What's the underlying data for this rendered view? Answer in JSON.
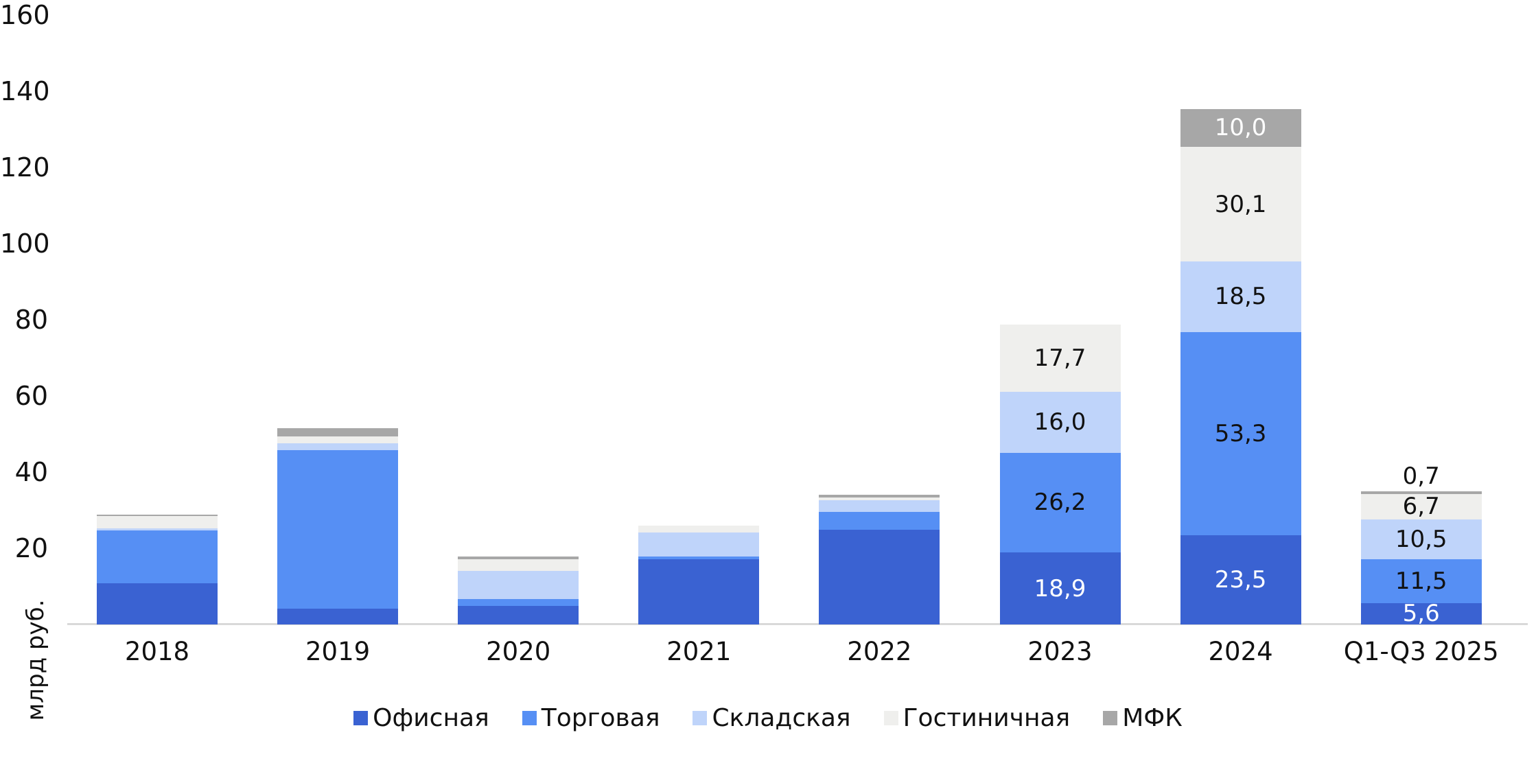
{
  "chart_data": {
    "type": "bar",
    "variant": "stacked-column",
    "title": "",
    "grid": "off",
    "legend_position": "bottom",
    "y_axis": {
      "title": "млрд руб.",
      "min": 0,
      "max": 160,
      "tick_step": 20,
      "tick_values": [
        160,
        140,
        120,
        100,
        80,
        60,
        40,
        20
      ],
      "tick_labels": [
        "160",
        "140",
        "120",
        "100",
        "80",
        "60",
        "40",
        "20"
      ]
    },
    "categories": [
      "2018",
      "2019",
      "2020",
      "2021",
      "2022",
      "2023",
      "2024",
      "Q1-Q3 2025"
    ],
    "series": [
      {
        "name": "Офисная",
        "color": "#3a62d2",
        "values": [
          10.8,
          4.2,
          4.9,
          17.2,
          24.8,
          18.9,
          23.5,
          5.6
        ]
      },
      {
        "name": "Торговая",
        "color": "#568ff4",
        "values": [
          13.8,
          41.5,
          1.8,
          0.7,
          4.8,
          26.2,
          53.3,
          11.5
        ]
      },
      {
        "name": "Складская",
        "color": "#bfd4fa",
        "values": [
          0.6,
          1.9,
          7.4,
          6.2,
          3.0,
          16.0,
          18.5,
          10.5
        ]
      },
      {
        "name": "Гостиничная",
        "color": "#efefed",
        "values": [
          3.2,
          1.8,
          3.0,
          1.8,
          0.7,
          17.7,
          30.1,
          6.7
        ]
      },
      {
        "name": "МФК",
        "color": "#a7a7a7",
        "values": [
          0.4,
          2.1,
          0.7,
          0.0,
          0.8,
          0.0,
          10.0,
          0.7
        ]
      }
    ],
    "data_labels": [
      {
        "category_index": 5,
        "series_index": 0,
        "text": "18,9",
        "color": "#ffffff",
        "above_bar": false
      },
      {
        "category_index": 5,
        "series_index": 1,
        "text": "26,2",
        "color": "#111111",
        "above_bar": false
      },
      {
        "category_index": 5,
        "series_index": 2,
        "text": "16,0",
        "color": "#111111",
        "above_bar": false
      },
      {
        "category_index": 5,
        "series_index": 3,
        "text": "17,7",
        "color": "#111111",
        "above_bar": false
      },
      {
        "category_index": 6,
        "series_index": 0,
        "text": "23,5",
        "color": "#ffffff",
        "above_bar": false
      },
      {
        "category_index": 6,
        "series_index": 1,
        "text": "53,3",
        "color": "#111111",
        "above_bar": false
      },
      {
        "category_index": 6,
        "series_index": 2,
        "text": "18,5",
        "color": "#111111",
        "above_bar": false
      },
      {
        "category_index": 6,
        "series_index": 3,
        "text": "30,1",
        "color": "#111111",
        "above_bar": false
      },
      {
        "category_index": 6,
        "series_index": 4,
        "text": "10,0",
        "color": "#ffffff",
        "above_bar": false
      },
      {
        "category_index": 7,
        "series_index": 0,
        "text": "5,6",
        "color": "#ffffff",
        "above_bar": false
      },
      {
        "category_index": 7,
        "series_index": 1,
        "text": "11,5",
        "color": "#111111",
        "above_bar": false
      },
      {
        "category_index": 7,
        "series_index": 2,
        "text": "10,5",
        "color": "#111111",
        "above_bar": false
      },
      {
        "category_index": 7,
        "series_index": 3,
        "text": "6,7",
        "color": "#111111",
        "above_bar": false
      },
      {
        "category_index": 7,
        "series_index": 4,
        "text": "0,7",
        "color": "#111111",
        "above_bar": true
      }
    ],
    "colors": {
      "axis_line": "#d9d9d9",
      "label_dark": "#111111",
      "label_light": "#ffffff"
    }
  }
}
